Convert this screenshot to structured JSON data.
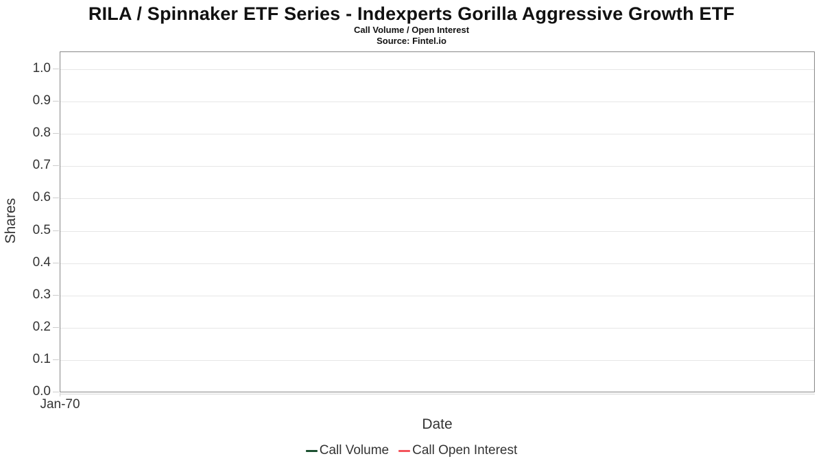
{
  "header": {
    "title": "RILA / Spinnaker ETF Series - Indexperts Gorilla Aggressive Growth ETF",
    "subtitle": "Call Volume / Open Interest",
    "source": "Source: Fintel.io"
  },
  "chart_data": {
    "type": "line",
    "title": "RILA / Spinnaker ETF Series - Indexperts Gorilla Aggressive Growth ETF",
    "subtitle": "Call Volume / Open Interest",
    "source": "Source: Fintel.io",
    "xlabel": "Date",
    "ylabel": "Shares",
    "ylim": [
      0.0,
      1.0
    ],
    "yticks": [
      "0.0",
      "0.1",
      "0.2",
      "0.3",
      "0.4",
      "0.5",
      "0.6",
      "0.7",
      "0.8",
      "0.9",
      "1.0"
    ],
    "xticks": [
      "Jan-70"
    ],
    "grid": true,
    "legend_position": "bottom",
    "plot_border_color": "#878787",
    "gridline_color": "#e6e6e6",
    "series": [
      {
        "name": "Call Volume",
        "color": "#1d5131",
        "x": [],
        "values": []
      },
      {
        "name": "Call Open Interest",
        "color": "#f4545c",
        "x": [],
        "values": []
      }
    ]
  }
}
